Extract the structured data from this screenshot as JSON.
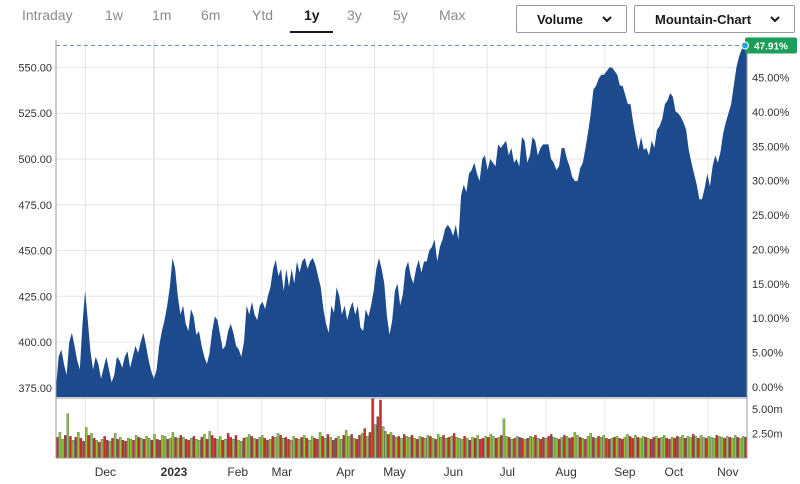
{
  "range_tabs": [
    {
      "label": "Intraday",
      "active": false
    },
    {
      "label": "1w",
      "active": false
    },
    {
      "label": "1m",
      "active": false
    },
    {
      "label": "6m",
      "active": false
    },
    {
      "label": "Ytd",
      "active": false
    },
    {
      "label": "1y",
      "active": true
    },
    {
      "label": "3y",
      "active": false
    },
    {
      "label": "5y",
      "active": false
    },
    {
      "label": "Max",
      "active": false
    }
  ],
  "volume_dropdown": {
    "label": "Volume",
    "icon": "chevron-down-icon"
  },
  "chart_type_dropdown": {
    "label": "Mountain-Chart",
    "icon": "chevron-down-icon"
  },
  "colors": {
    "area": "#1d4a8c",
    "vol_up": "#8dc63f",
    "vol_down": "#c9302c",
    "badge": "#1a9e5a",
    "grid": "#e6e6e6"
  },
  "chart_data": [
    {
      "type": "area",
      "y_ticks": [
        "375.00",
        "400.00",
        "425.00",
        "450.00",
        "475.00",
        "500.00",
        "525.00",
        "550.00"
      ],
      "y_tick_values": [
        375,
        400,
        425,
        450,
        475,
        500,
        525,
        550
      ],
      "y2_ticks": [
        "0.00%",
        "5.00%",
        "10.00%",
        "15.00%",
        "20.00%",
        "25.00%",
        "30.00%",
        "35.00%",
        "40.00%",
        "45.00%"
      ],
      "y2_tick_values": [
        0,
        5,
        10,
        15,
        20,
        25,
        30,
        35,
        40,
        45
      ],
      "ylim": [
        370,
        565
      ],
      "y2_base": 375.5,
      "x_labels": [
        "Dec",
        "2023",
        "Feb",
        "Mar",
        "Apr",
        "May",
        "Jun",
        "Jul",
        "Aug",
        "Sep",
        "Oct",
        "Nov"
      ],
      "x_label_pos": [
        0.6,
        2.0,
        3.3,
        4.2,
        5.5,
        6.5,
        7.7,
        8.8,
        10.0,
        11.2,
        12.2,
        13.3
      ],
      "xlim": [
        0,
        14.1
      ],
      "last_badge": "47.91%",
      "last_value": 562,
      "values": [
        375,
        392,
        396,
        388,
        382,
        400,
        405,
        398,
        390,
        385,
        410,
        428,
        412,
        395,
        385,
        392,
        388,
        380,
        386,
        392,
        385,
        378,
        382,
        392,
        390,
        386,
        392,
        395,
        386,
        392,
        398,
        394,
        400,
        405,
        398,
        390,
        384,
        380,
        385,
        398,
        406,
        412,
        420,
        430,
        446,
        440,
        425,
        415,
        420,
        410,
        406,
        418,
        414,
        404,
        406,
        398,
        392,
        388,
        394,
        406,
        414,
        412,
        404,
        396,
        398,
        406,
        410,
        405,
        398,
        396,
        392,
        400,
        420,
        415,
        422,
        415,
        412,
        420,
        422,
        418,
        425,
        430,
        440,
        445,
        436,
        440,
        428,
        440,
        430,
        440,
        432,
        444,
        438,
        444,
        446,
        440,
        444,
        446,
        442,
        436,
        430,
        418,
        410,
        405,
        420,
        416,
        430,
        425,
        415,
        420,
        412,
        418,
        422,
        415,
        420,
        408,
        406,
        418,
        414,
        420,
        428,
        440,
        446,
        440,
        432,
        414,
        404,
        412,
        428,
        432,
        420,
        426,
        440,
        444,
        436,
        432,
        440,
        445,
        438,
        444,
        444,
        450,
        452,
        456,
        444,
        452,
        456,
        462,
        464,
        462,
        458,
        464,
        456,
        480,
        486,
        482,
        492,
        494,
        498,
        492,
        488,
        500,
        502,
        494,
        500,
        498,
        496,
        508,
        506,
        508,
        510,
        502,
        506,
        498,
        500,
        496,
        512,
        510,
        498,
        502,
        512,
        510,
        502,
        506,
        508,
        508,
        508,
        500,
        498,
        494,
        496,
        506,
        506,
        500,
        496,
        490,
        488,
        488,
        495,
        498,
        506,
        515,
        525,
        538,
        540,
        544,
        546,
        546,
        548,
        550,
        550,
        548,
        546,
        540,
        540,
        535,
        530,
        530,
        520,
        512,
        505,
        512,
        505,
        506,
        502,
        510,
        506,
        516,
        518,
        522,
        530,
        532,
        536,
        534,
        526,
        525,
        523,
        520,
        516,
        505,
        498,
        492,
        486,
        478,
        478,
        484,
        492,
        485,
        496,
        502,
        498,
        504,
        514,
        520,
        525,
        530,
        540,
        550,
        556,
        560,
        562,
        562
      ]
    },
    {
      "type": "bar",
      "y_ticks": [
        "2.50m",
        "5.00m"
      ],
      "y_tick_values": [
        2.5,
        5.0
      ],
      "ylim": [
        0,
        6
      ],
      "series": [
        {
          "name": "",
          "values": [
            2.1,
            2.6,
            1.9,
            2.3,
            4.5,
            2.2,
            1.8,
            2.1,
            2.6,
            2.0,
            1.7,
            3.1,
            2.3,
            2.5,
            2.0,
            1.8,
            1.6,
            1.9,
            2.2,
            1.8,
            1.7,
            2.0,
            2.5,
            1.9,
            2.1,
            1.8,
            1.7,
            2.0,
            1.9,
            1.8,
            2.3,
            2.1,
            2.0,
            1.9,
            2.2,
            2.0,
            1.8,
            2.4,
            1.9,
            1.8,
            2.3,
            2.2,
            1.9,
            2.0,
            2.6,
            2.1,
            2.0,
            2.3,
            2.1,
            1.9,
            1.8,
            2.0,
            2.2,
            1.9,
            1.8,
            2.1,
            2.4,
            1.9,
            2.7,
            2.3,
            2.0,
            1.9,
            2.2,
            1.8,
            1.9,
            2.5,
            2.1,
            1.9,
            2.3,
            1.8,
            1.7,
            2.0,
            2.1,
            2.4,
            2.2,
            2.0,
            1.9,
            2.1,
            2.3,
            2.0,
            1.8,
            1.9,
            2.2,
            2.1,
            2.5,
            2.3,
            2.0,
            2.1,
            1.9,
            1.8,
            2.2,
            2.0,
            1.9,
            2.1,
            2.3,
            2.0,
            1.8,
            2.2,
            2.0,
            1.9,
            2.6,
            2.2,
            2.0,
            2.4,
            2.1,
            1.8,
            2.0,
            2.2,
            1.9,
            2.3,
            2.8,
            2.2,
            2.4,
            2.0,
            1.9,
            2.3,
            2.5,
            3.0,
            2.2,
            2.6,
            6.1,
            3.4,
            4.2,
            5.9,
            3.2,
            2.7,
            2.4,
            2.6,
            2.3,
            2.1,
            2.2,
            2.0,
            2.4,
            2.2,
            2.1,
            2.3,
            2.0,
            1.9,
            2.2,
            2.1,
            2.0,
            2.3,
            2.2,
            2.0,
            1.9,
            2.4,
            2.1,
            2.3,
            2.0,
            2.1,
            2.2,
            2.5,
            2.1,
            2.0,
            1.9,
            2.2,
            2.0,
            1.8,
            2.1,
            2.0,
            2.3,
            1.9,
            2.0,
            2.2,
            2.1,
            2.4,
            2.2,
            2.0,
            2.1,
            2.3,
            4.0,
            2.2,
            2.1,
            1.9,
            2.0,
            2.2,
            2.1,
            2.0,
            1.9,
            2.0,
            2.2,
            2.1,
            2.3,
            2.0,
            1.9,
            2.1,
            2.0,
            2.2,
            2.4,
            2.1,
            2.0,
            1.9,
            2.1,
            2.3,
            2.2,
            2.0,
            2.1,
            2.6,
            2.3,
            2.1,
            2.0,
            1.9,
            2.2,
            2.5,
            2.1,
            2.0,
            2.2,
            2.1,
            2.3,
            2.0,
            1.9,
            2.0,
            2.1,
            2.2,
            2.0,
            1.9,
            2.1,
            2.4,
            2.2,
            2.0,
            2.3,
            2.1,
            2.0,
            2.2,
            2.1,
            2.0,
            1.9,
            2.1,
            2.2,
            2.0,
            2.1,
            2.3,
            2.0,
            1.9,
            2.1,
            2.0,
            2.2,
            2.1,
            2.3,
            2.0,
            2.2,
            2.1,
            2.4,
            2.2,
            2.0,
            2.3,
            2.1,
            2.0,
            2.2,
            2.1,
            2.0,
            2.3,
            2.2,
            2.1,
            2.0,
            2.2,
            2.1,
            2.0,
            2.3,
            2.1,
            2.0,
            2.2,
            2.1
          ]
        },
        {
          "name": "",
          "up": [
            0,
            1,
            1,
            0,
            1,
            0,
            1,
            0,
            1,
            0,
            0,
            1,
            0,
            1,
            0,
            1,
            0,
            1,
            0,
            0,
            1,
            0,
            1,
            0,
            1,
            0,
            0,
            1,
            1,
            0,
            1,
            0,
            1,
            0,
            1,
            1,
            0,
            1,
            0,
            0,
            1,
            1,
            0,
            1,
            1,
            0,
            1,
            0,
            1,
            0,
            0,
            1,
            0,
            1,
            1,
            0,
            1,
            0,
            1,
            0,
            0,
            1,
            1,
            0,
            1,
            0,
            0,
            1,
            0,
            1,
            1,
            0,
            1,
            1,
            0,
            1,
            0,
            1,
            1,
            0,
            0,
            1,
            0,
            1,
            1,
            0,
            1,
            0,
            0,
            1,
            1,
            0,
            1,
            0,
            1,
            0,
            1,
            1,
            0,
            0,
            1,
            0,
            1,
            0,
            1,
            0,
            0,
            1,
            1,
            0,
            1,
            1,
            0,
            1,
            0,
            0,
            1,
            0,
            1,
            0,
            0,
            1,
            0,
            0,
            1,
            1,
            0,
            1,
            0,
            1,
            0,
            1,
            0,
            1,
            1,
            0,
            1,
            0,
            1,
            0,
            1,
            1,
            0,
            1,
            0,
            1,
            1,
            0,
            1,
            0,
            1,
            0,
            1,
            1,
            1,
            0,
            1,
            0,
            1,
            0,
            1,
            0,
            0,
            1,
            0,
            1,
            1,
            0,
            1,
            0,
            1,
            1,
            0,
            1,
            0,
            1,
            0,
            0,
            1,
            0,
            1,
            1,
            0,
            1,
            0,
            0,
            1,
            0,
            0,
            1,
            1,
            0,
            1,
            0,
            1,
            0,
            0,
            1,
            1,
            0,
            1,
            0,
            1,
            1,
            0,
            1,
            0,
            1,
            1,
            0,
            0,
            1,
            0,
            1,
            0,
            0,
            1,
            1,
            0,
            0,
            1,
            0,
            1,
            1,
            0,
            1,
            0,
            0,
            1,
            0,
            1,
            1,
            0,
            0,
            1,
            0,
            0,
            1,
            1,
            0,
            1,
            1,
            0,
            1,
            0,
            1,
            1,
            0,
            1,
            1,
            1,
            0,
            1,
            1,
            0,
            1,
            0,
            1,
            1,
            0,
            1,
            1
          ]
        }
      ]
    }
  ]
}
